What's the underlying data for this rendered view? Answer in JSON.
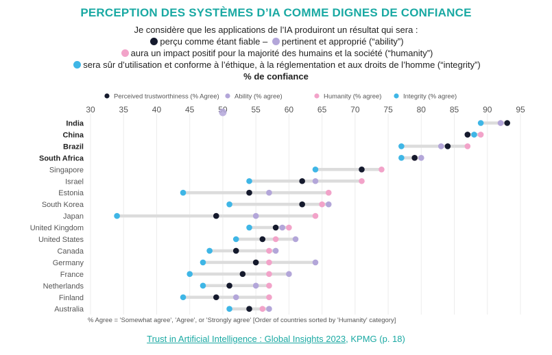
{
  "title": "PERCEPTION DES SYSTÈMES D’IA COMME DIGNES DE CONFIANCE",
  "subtitle": {
    "line1": "Je considère que les applications de l’IA produiront un résultat qui sera :",
    "item_trust": "perçu comme étant fiable",
    "separator": " – ",
    "item_ability": "pertinent et approprié (“ability”)",
    "item_humanity": "aura un impact positif pour la majorité des humains et la société (“humanity”)",
    "item_integrity": "sera sûr d’utilisation et conforme à l’éthique, à la réglementation et aux droits de l’homme (“integrity”)",
    "unit": "% de confiance"
  },
  "footnote": "% Agree = 'Somewhat agree', 'Agree', or 'Strongly agree'  [Order of countries sorted by 'Humanity' category]",
  "source": {
    "link_text": "Trust in Artificial Intelligence : Global Insights 2023",
    "rest": ", KPMG (p. 18)"
  },
  "colors": {
    "accent": "#1aa9a3",
    "trust": "#151a2d",
    "ability": "#b3a6d9",
    "humanity": "#f2a3c9",
    "integrity": "#3fb6e6"
  },
  "chart_data": {
    "type": "scatter",
    "title": "",
    "xlabel": "",
    "ylabel": "",
    "xlim": [
      30,
      95
    ],
    "xticks": [
      30,
      35,
      40,
      45,
      50,
      55,
      60,
      65,
      70,
      75,
      80,
      85,
      90,
      95
    ],
    "grid": true,
    "legend_position": "top",
    "bold_countries": [
      "India",
      "China",
      "Brazil",
      "South Africa"
    ],
    "countries": [
      "India",
      "China",
      "Brazil",
      "South Africa",
      "Singapore",
      "Israel",
      "Estonia",
      "South Korea",
      "Japan",
      "United Kingdom",
      "United States",
      "Canada",
      "Germany",
      "France",
      "Netherlands",
      "Finland",
      "Australia"
    ],
    "series": [
      {
        "name": "Perceived trustworthiness (% Agree)",
        "key": "trust",
        "values": [
          93,
          87,
          84,
          79,
          71,
          62,
          54,
          62,
          49,
          58,
          56,
          52,
          55,
          53,
          51,
          49,
          54
        ]
      },
      {
        "name": "Ability (% agree)",
        "key": "ability",
        "values": [
          92,
          87,
          83,
          80,
          71,
          64,
          57,
          66,
          55,
          59,
          61,
          58,
          64,
          60,
          55,
          52,
          57
        ]
      },
      {
        "name": "Humanity (% agree)",
        "key": "humanity",
        "values": [
          92,
          89,
          87,
          79,
          74,
          71,
          66,
          65,
          64,
          60,
          58,
          57,
          57,
          57,
          57,
          57,
          56
        ]
      },
      {
        "name": "Integrity (% agree)",
        "key": "integrity",
        "values": [
          89,
          88,
          77,
          77,
          64,
          54,
          44,
          51,
          34,
          54,
          52,
          48,
          47,
          45,
          47,
          44,
          51
        ]
      }
    ],
    "stray_point": {
      "value": 50,
      "color_key": "ability"
    }
  }
}
